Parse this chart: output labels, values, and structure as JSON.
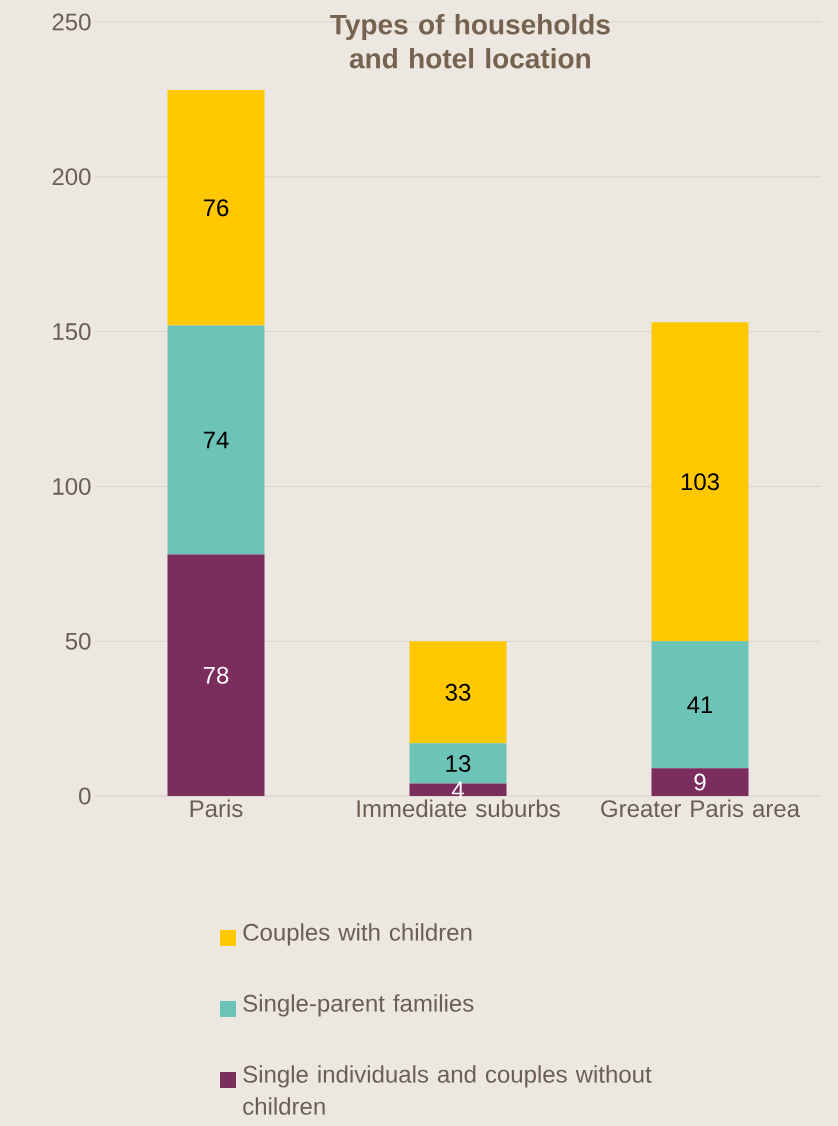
{
  "chart_data": {
    "type": "bar",
    "stacked": true,
    "title": "Types of households and hotel location",
    "categories": [
      "Paris",
      "Immediate suburbs",
      "Greater Paris area"
    ],
    "series": [
      {
        "name": "Single individuals and couples without children",
        "color": "#7b2d5e",
        "values": [
          78,
          4,
          9
        ]
      },
      {
        "name": "Single-parent families",
        "color": "#6cc3b7",
        "values": [
          74,
          13,
          41
        ]
      },
      {
        "name": "Couples with children",
        "color": "#ffc800",
        "values": [
          76,
          33,
          103
        ]
      }
    ],
    "ylim": [
      0,
      250
    ],
    "yticks": [
      0,
      50,
      100,
      150,
      200,
      250
    ],
    "grid": "y",
    "legend": "bottom",
    "data_labels": true
  }
}
